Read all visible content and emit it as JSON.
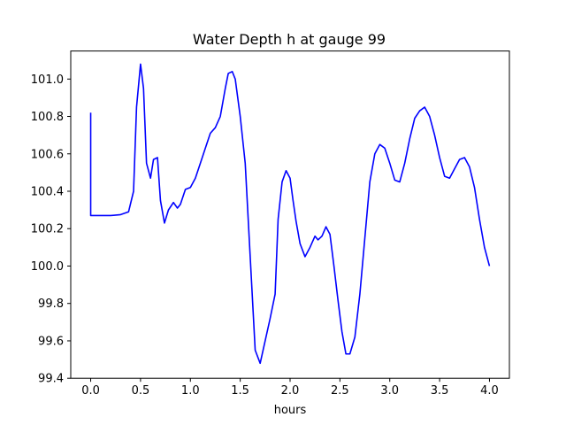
{
  "chart_data": {
    "type": "line",
    "title": "Water Depth h at gauge 99",
    "xlabel": "hours",
    "ylabel": "",
    "xlim": [
      -0.2,
      4.2
    ],
    "ylim": [
      99.4,
      101.15
    ],
    "xticks": [
      0.0,
      0.5,
      1.0,
      1.5,
      2.0,
      2.5,
      3.0,
      3.5,
      4.0
    ],
    "xtick_labels": [
      "0.0",
      "0.5",
      "1.0",
      "1.5",
      "2.0",
      "2.5",
      "3.0",
      "3.5",
      "4.0"
    ],
    "yticks": [
      99.4,
      99.6,
      99.8,
      100.0,
      100.2,
      100.4,
      100.6,
      100.8,
      101.0
    ],
    "ytick_labels": [
      "99.4",
      "99.6",
      "99.8",
      "100.0",
      "100.2",
      "100.4",
      "100.6",
      "100.8",
      "101.0"
    ],
    "grid": false,
    "series": [
      {
        "color": "#0000ff",
        "x": [
          0.0,
          0.0,
          0.1,
          0.2,
          0.3,
          0.38,
          0.43,
          0.46,
          0.5,
          0.53,
          0.56,
          0.6,
          0.63,
          0.67,
          0.7,
          0.74,
          0.78,
          0.83,
          0.87,
          0.9,
          0.95,
          1.0,
          1.05,
          1.1,
          1.15,
          1.2,
          1.25,
          1.3,
          1.35,
          1.38,
          1.42,
          1.45,
          1.5,
          1.55,
          1.6,
          1.65,
          1.7,
          1.75,
          1.8,
          1.85,
          1.88,
          1.92,
          1.96,
          2.0,
          2.03,
          2.06,
          2.1,
          2.15,
          2.2,
          2.25,
          2.28,
          2.32,
          2.36,
          2.4,
          2.44,
          2.48,
          2.52,
          2.56,
          2.6,
          2.65,
          2.7,
          2.75,
          2.8,
          2.85,
          2.9,
          2.95,
          3.0,
          3.05,
          3.1,
          3.15,
          3.2,
          3.25,
          3.3,
          3.35,
          3.4,
          3.45,
          3.5,
          3.55,
          3.6,
          3.65,
          3.7,
          3.75,
          3.8,
          3.85,
          3.9,
          3.95,
          4.0
        ],
        "y": [
          100.82,
          100.27,
          100.27,
          100.27,
          100.275,
          100.29,
          100.4,
          100.85,
          101.08,
          100.95,
          100.55,
          100.47,
          100.57,
          100.58,
          100.35,
          100.23,
          100.3,
          100.34,
          100.31,
          100.33,
          100.41,
          100.42,
          100.47,
          100.55,
          100.63,
          100.71,
          100.74,
          100.8,
          100.95,
          101.03,
          101.04,
          101.0,
          100.8,
          100.55,
          100.05,
          99.55,
          99.48,
          99.6,
          99.72,
          99.85,
          100.25,
          100.45,
          100.51,
          100.47,
          100.35,
          100.24,
          100.12,
          100.05,
          100.1,
          100.16,
          100.14,
          100.16,
          100.21,
          100.17,
          100.0,
          99.82,
          99.65,
          99.53,
          99.53,
          99.62,
          99.85,
          100.15,
          100.45,
          100.6,
          100.65,
          100.63,
          100.55,
          100.46,
          100.45,
          100.55,
          100.68,
          100.79,
          100.83,
          100.85,
          100.8,
          100.7,
          100.58,
          100.48,
          100.47,
          100.52,
          100.57,
          100.58,
          100.53,
          100.42,
          100.25,
          100.1,
          100.0
        ]
      }
    ]
  }
}
